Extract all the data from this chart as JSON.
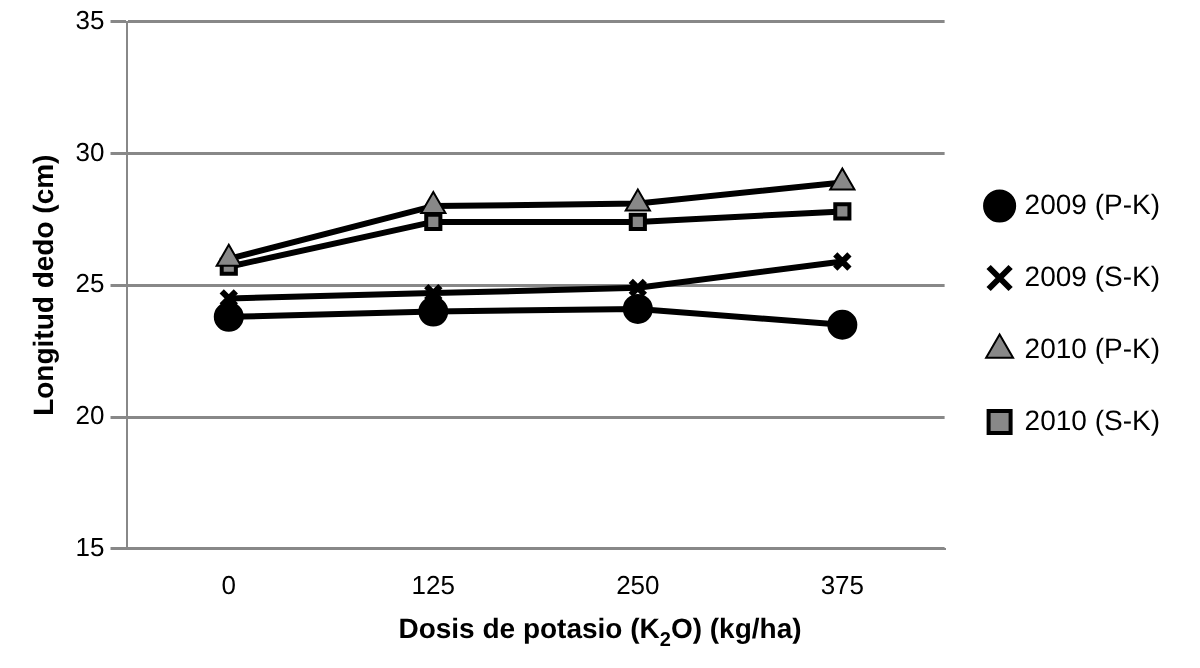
{
  "chart_data": {
    "type": "line",
    "xlabel": "Dosis de potasio (K$_{2}$O) (kg/ha)",
    "ylabel": "Longitud dedo (cm)",
    "categories": [
      "0",
      "125",
      "250",
      "375"
    ],
    "series": [
      {
        "name": "2009 (P-K)",
        "color": "#000000",
        "marker": "circle",
        "values": [
          23.8,
          24.0,
          24.1,
          23.5
        ]
      },
      {
        "name": "2009 (S-K)",
        "color": "#000000",
        "marker": "cross",
        "values": [
          24.5,
          24.7,
          24.9,
          25.9
        ]
      },
      {
        "name": "2010 (P-K)",
        "color": "#000000",
        "marker": "triangle",
        "values": [
          26.0,
          28.0,
          28.1,
          28.9
        ]
      },
      {
        "name": "2010 (S-K)",
        "color": "#000000",
        "marker": "square",
        "values": [
          25.7,
          27.4,
          27.4,
          27.8
        ]
      }
    ],
    "ylim": [
      15,
      35
    ],
    "yticks": [
      15,
      20,
      25,
      30,
      35
    ],
    "grid": "y",
    "legend": "right"
  }
}
